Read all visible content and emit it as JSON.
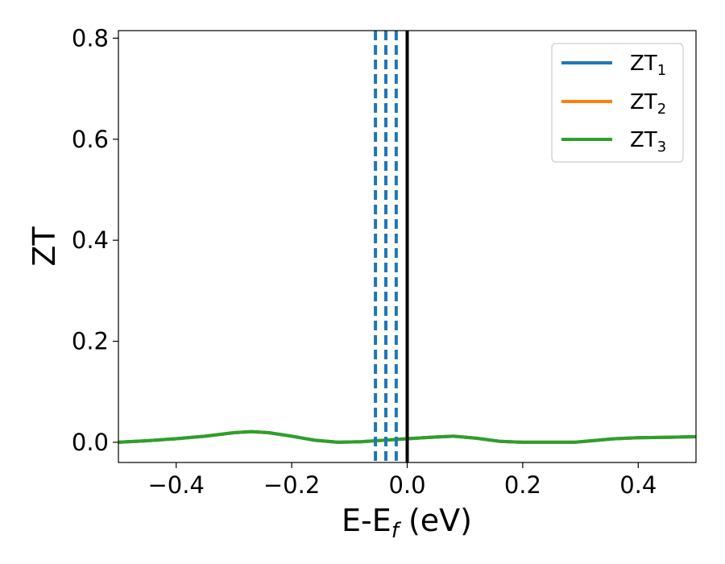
{
  "chart_data": {
    "type": "line",
    "xlabel_main": "E-E",
    "xlabel_sub": "f",
    "xlabel_unit": " (eV)",
    "ylabel": "ZT",
    "xlim": [
      -0.5,
      0.5
    ],
    "ylim": [
      -0.04,
      0.815
    ],
    "xticks": [
      -0.4,
      -0.2,
      0.0,
      0.2,
      0.4
    ],
    "xtick_labels": [
      "−0.4",
      "−0.2",
      "0.0",
      "0.2",
      "0.4"
    ],
    "yticks": [
      0.0,
      0.2,
      0.4,
      0.6,
      0.8
    ],
    "ytick_labels": [
      "0.0",
      "0.2",
      "0.4",
      "0.6",
      "0.8"
    ],
    "grid": false,
    "legend_position": "top-right",
    "series": [
      {
        "name_main": "ZT",
        "name_sub": "1",
        "color": "#1f77b4",
        "x": [
          -0.5,
          -0.45,
          -0.4,
          -0.35,
          -0.3,
          -0.27,
          -0.24,
          -0.2,
          -0.16,
          -0.12,
          -0.08,
          -0.04,
          0.0,
          0.04,
          0.08,
          0.12,
          0.16,
          0.2,
          0.25,
          0.29,
          0.32,
          0.36,
          0.4,
          0.45,
          0.5
        ],
        "y": [
          0.0,
          0.003,
          0.007,
          0.012,
          0.019,
          0.021,
          0.019,
          0.012,
          0.004,
          0.0,
          0.001,
          0.004,
          0.007,
          0.01,
          0.012,
          0.008,
          0.002,
          0.0,
          0.0,
          0.0,
          0.003,
          0.007,
          0.009,
          0.01,
          0.011
        ]
      },
      {
        "name_main": "ZT",
        "name_sub": "2",
        "color": "#ff7f0e",
        "x": [
          -0.5,
          -0.45,
          -0.4,
          -0.35,
          -0.3,
          -0.27,
          -0.24,
          -0.2,
          -0.16,
          -0.12,
          -0.08,
          -0.04,
          0.0,
          0.04,
          0.08,
          0.12,
          0.16,
          0.2,
          0.25,
          0.29,
          0.32,
          0.36,
          0.4,
          0.45,
          0.5
        ],
        "y": [
          0.0,
          0.003,
          0.007,
          0.012,
          0.019,
          0.021,
          0.019,
          0.012,
          0.004,
          0.0,
          0.001,
          0.004,
          0.007,
          0.01,
          0.012,
          0.008,
          0.002,
          0.0,
          0.0,
          0.0,
          0.003,
          0.007,
          0.009,
          0.01,
          0.011
        ]
      },
      {
        "name_main": "ZT",
        "name_sub": "3",
        "color": "#2ca02c",
        "x": [
          -0.5,
          -0.45,
          -0.4,
          -0.35,
          -0.3,
          -0.27,
          -0.24,
          -0.2,
          -0.16,
          -0.12,
          -0.08,
          -0.04,
          0.0,
          0.04,
          0.08,
          0.12,
          0.16,
          0.2,
          0.25,
          0.29,
          0.32,
          0.36,
          0.4,
          0.45,
          0.5
        ],
        "y": [
          0.0,
          0.003,
          0.007,
          0.012,
          0.019,
          0.021,
          0.019,
          0.012,
          0.004,
          0.0,
          0.001,
          0.004,
          0.007,
          0.01,
          0.012,
          0.008,
          0.002,
          0.0,
          0.0,
          0.0,
          0.003,
          0.007,
          0.009,
          0.01,
          0.011
        ]
      }
    ],
    "vlines": [
      {
        "x": -0.055,
        "style": "dashed",
        "color": "#1f77b4"
      },
      {
        "x": -0.037,
        "style": "dashed",
        "color": "#1f77b4"
      },
      {
        "x": -0.019,
        "style": "dashed",
        "color": "#1f77b4"
      },
      {
        "x": 0.0,
        "style": "solid",
        "color": "#000000"
      }
    ]
  }
}
